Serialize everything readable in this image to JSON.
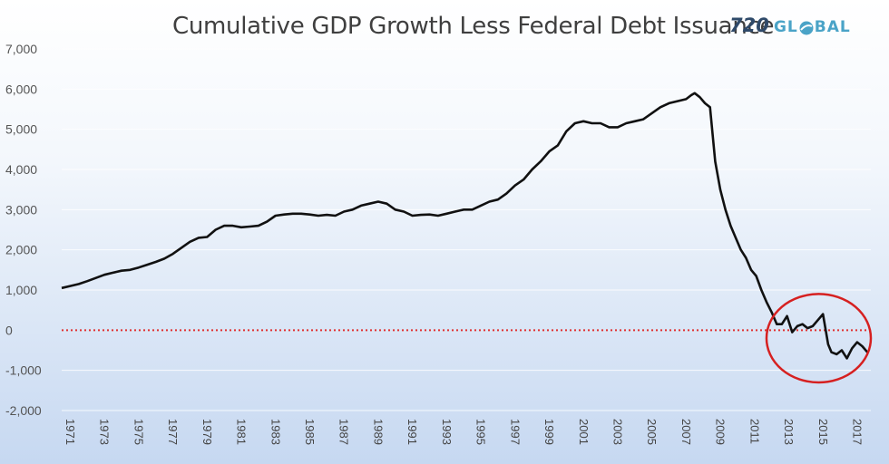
{
  "title": "Cumulative GDP Growth Less Federal Debt Issuance",
  "logo": {
    "num": "720",
    "word_a": "GL",
    "word_b": "BAL"
  },
  "colors": {
    "line": "#111111",
    "zero_line": "#e03030",
    "circle": "#d62020",
    "grid": "#ffffff"
  },
  "chart_data": {
    "type": "line",
    "title": "Cumulative GDP Growth Less Federal Debt Issuance",
    "xlabel": "",
    "ylabel": "",
    "ylim": [
      -2000,
      7000
    ],
    "xlim": [
      1971,
      2018.3
    ],
    "y_ticks": [
      -2000,
      -1000,
      0,
      1000,
      2000,
      3000,
      4000,
      5000,
      6000,
      7000
    ],
    "y_tick_labels": [
      "-2,000",
      "-1,000",
      "0",
      "1,000",
      "2,000",
      "3,000",
      "4,000",
      "5,000",
      "6,000",
      "7,000"
    ],
    "x_tick_labels": [
      "1971",
      "1973",
      "1975",
      "1977",
      "1979",
      "1981",
      "1983",
      "1985",
      "1987",
      "1989",
      "1991",
      "1993",
      "1995",
      "1997",
      "1999",
      "2001",
      "2003",
      "2005",
      "2007",
      "2009",
      "2011",
      "2013",
      "2015",
      "2017"
    ],
    "grid": true,
    "reference_line": {
      "y": 0,
      "style": "dotted"
    },
    "highlight": {
      "shape": "ellipse",
      "x_range": [
        2012.2,
        2018.3
      ],
      "y_range": [
        -1300,
        900
      ]
    },
    "x": [
      1971.0,
      1971.5,
      1972.0,
      1972.5,
      1973.0,
      1973.5,
      1974.0,
      1974.5,
      1975.0,
      1975.5,
      1976.0,
      1976.5,
      1977.0,
      1977.5,
      1978.0,
      1978.5,
      1979.0,
      1979.5,
      1980.0,
      1980.5,
      1981.0,
      1981.5,
      1982.0,
      1982.5,
      1983.0,
      1983.5,
      1984.0,
      1984.5,
      1985.0,
      1985.5,
      1986.0,
      1986.5,
      1987.0,
      1987.5,
      1988.0,
      1988.5,
      1989.0,
      1989.5,
      1990.0,
      1990.5,
      1991.0,
      1991.5,
      1992.0,
      1992.5,
      1993.0,
      1993.5,
      1994.0,
      1994.5,
      1995.0,
      1995.5,
      1996.0,
      1996.5,
      1997.0,
      1997.5,
      1998.0,
      1998.5,
      1999.0,
      1999.5,
      2000.0,
      2000.5,
      2001.0,
      2001.5,
      2002.0,
      2002.5,
      2003.0,
      2003.5,
      2004.0,
      2004.5,
      2005.0,
      2005.5,
      2006.0,
      2006.5,
      2007.0,
      2007.5,
      2007.8,
      2008.0,
      2008.3,
      2008.6,
      2008.9,
      2009.2,
      2009.5,
      2009.8,
      2010.1,
      2010.4,
      2010.7,
      2011.0,
      2011.3,
      2011.6,
      2011.9,
      2012.2,
      2012.5,
      2012.8,
      2013.1,
      2013.4,
      2013.7,
      2014.0,
      2014.3,
      2014.6,
      2014.9,
      2015.2,
      2015.5,
      2015.8,
      2016.0,
      2016.3,
      2016.6,
      2016.9,
      2017.2,
      2017.5,
      2017.8,
      2018.1
    ],
    "y": [
      1050,
      1100,
      1150,
      1220,
      1300,
      1380,
      1430,
      1480,
      1500,
      1560,
      1630,
      1700,
      1780,
      1900,
      2050,
      2200,
      2300,
      2320,
      2500,
      2600,
      2600,
      2560,
      2580,
      2600,
      2700,
      2850,
      2880,
      2900,
      2900,
      2880,
      2850,
      2870,
      2850,
      2950,
      3000,
      3100,
      3150,
      3200,
      3150,
      3000,
      2950,
      2850,
      2870,
      2880,
      2850,
      2900,
      2950,
      3000,
      3000,
      3100,
      3200,
      3250,
      3400,
      3600,
      3750,
      4000,
      4200,
      4450,
      4600,
      4950,
      5150,
      5200,
      5150,
      5150,
      5050,
      5050,
      5150,
      5200,
      5250,
      5400,
      5550,
      5650,
      5700,
      5750,
      5850,
      5900,
      5800,
      5650,
      5550,
      4200,
      3500,
      3000,
      2600,
      2300,
      2000,
      1800,
      1500,
      1350,
      1000,
      700,
      450,
      150,
      150,
      350,
      -50,
      100,
      150,
      50,
      100,
      250,
      400,
      -350,
      -550,
      -600,
      -500,
      -700,
      -450,
      -300,
      -400,
      -550
    ]
  }
}
